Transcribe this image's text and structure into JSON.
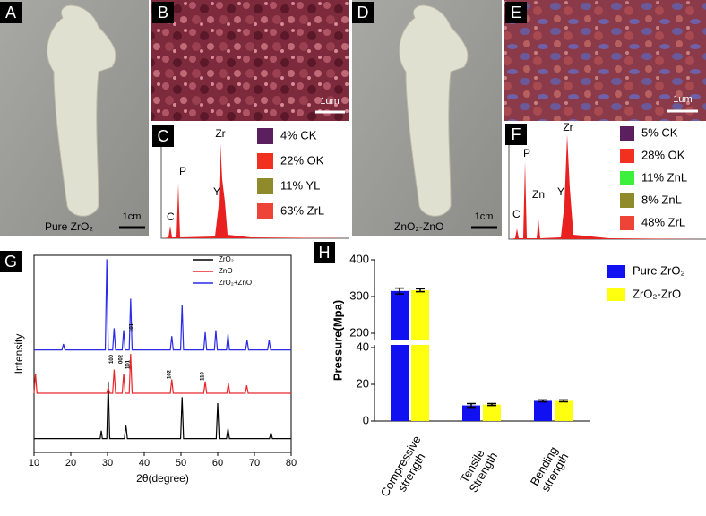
{
  "panels": {
    "A": {
      "letter": "A",
      "caption": "Pure ZrO₂",
      "scale": "1cm"
    },
    "B": {
      "letter": "B",
      "scale": "1um"
    },
    "C": {
      "letter": "C",
      "peaks": [
        "C",
        "P",
        "Zr",
        "Y"
      ],
      "legend": [
        {
          "text": "4% CK",
          "color": "#5b1f5e"
        },
        {
          "text": "22% OK",
          "color": "#f2301f"
        },
        {
          "text": "11% YL",
          "color": "#8f8a2a"
        },
        {
          "text": "63% ZrL",
          "color": "#ee4438"
        }
      ]
    },
    "D": {
      "letter": "D",
      "caption": "ZnO₂-ZnO",
      "scale": "1cm"
    },
    "E": {
      "letter": "E",
      "scale": "1um"
    },
    "F": {
      "letter": "F",
      "peaks": [
        "C",
        "P",
        "Zn",
        "Y",
        "Zr"
      ],
      "legend": [
        {
          "text": "5% CK",
          "color": "#5b1f5e"
        },
        {
          "text": "28% OK",
          "color": "#f2301f"
        },
        {
          "text": "11% ZnL",
          "color": "#3cf03c"
        },
        {
          "text": "8% ZnL",
          "color": "#8f8a2a"
        },
        {
          "text": "48% ZrL",
          "color": "#ee4438"
        }
      ]
    }
  },
  "chart_data": [
    {
      "letter": "G",
      "type": "line",
      "xlabel": "2θ(degree)",
      "ylabel": "Intensity",
      "xlim": [
        10,
        80
      ],
      "xticks": [
        10,
        20,
        30,
        40,
        50,
        60,
        70,
        80
      ],
      "ylim": [
        0,
        100
      ],
      "series": [
        {
          "name": "ZrO₂",
          "color": "#000000",
          "x": [
            10,
            28,
            28.3,
            28.6,
            29.8,
            30.2,
            30.6,
            34.6,
            35,
            35.4,
            49.9,
            50.3,
            50.7,
            59.6,
            60,
            60.4,
            62.4,
            62.8,
            63.2,
            74.1,
            74.5,
            74.9,
            80
          ],
          "values": [
            7,
            7,
            11,
            7,
            7,
            36,
            7,
            7,
            14,
            7,
            7,
            28,
            7,
            7,
            25,
            7,
            7,
            12,
            7,
            7,
            10,
            7,
            7
          ]
        },
        {
          "name": "ZnO",
          "color": "#e8262a",
          "x": [
            10,
            10.4,
            10.8,
            29.8,
            30.2,
            30.6,
            31.4,
            31.8,
            32.2,
            34,
            34.4,
            34.8,
            35.9,
            36.3,
            36.7,
            47.1,
            47.5,
            47.9,
            56.2,
            56.6,
            57,
            62.5,
            62.9,
            63.3,
            67.5,
            67.9,
            68.3,
            80
          ],
          "values": [
            30,
            40,
            30,
            30,
            33,
            30,
            30,
            42,
            30,
            30,
            40,
            30,
            30,
            50,
            30,
            30,
            37,
            30,
            30,
            36,
            30,
            30,
            35,
            30,
            30,
            34,
            30,
            30
          ]
        },
        {
          "name": "ZrO₂+ZnO",
          "color": "#2a2ae8",
          "x": [
            10,
            17.6,
            18,
            18.4,
            29.4,
            29.8,
            30.2,
            31.4,
            31.8,
            32.2,
            34,
            34.4,
            34.8,
            35.9,
            36.3,
            36.7,
            47.1,
            47.5,
            47.9,
            49.9,
            50.3,
            50.7,
            56.2,
            56.6,
            57,
            59.1,
            59.5,
            59.9,
            62.4,
            62.8,
            63.2,
            67.6,
            68,
            68.4,
            73.6,
            74,
            74.4,
            80
          ],
          "values": [
            52,
            52,
            55,
            52,
            52,
            98,
            52,
            52,
            63,
            52,
            52,
            62,
            52,
            52,
            78,
            52,
            52,
            59,
            52,
            52,
            75,
            52,
            52,
            61,
            52,
            52,
            62,
            52,
            52,
            60,
            52,
            52,
            57,
            52,
            52,
            57,
            52,
            52
          ]
        }
      ],
      "annotations": [
        {
          "text": "100",
          "x": 31.8
        },
        {
          "text": "002",
          "x": 34.4
        },
        {
          "text": "101",
          "x": 36.3
        },
        {
          "text": "102",
          "x": 47.5
        },
        {
          "text": "110",
          "x": 56.6
        },
        {
          "text": "101",
          "x": 37.3
        }
      ]
    },
    {
      "letter": "H",
      "type": "bar",
      "ylabel": "Pressure(Mpa)",
      "categories": [
        "Compressive strength",
        "Tensile Strength",
        "Bending strength"
      ],
      "ylim": [
        0,
        400
      ],
      "axis_break": [
        40,
        200
      ],
      "yticks": [
        0,
        20,
        40,
        200,
        300,
        400
      ],
      "series": [
        {
          "name": "Pure ZrO₂",
          "color": "#1010f0",
          "values": [
            315,
            8.5,
            11
          ],
          "errors": [
            8,
            1,
            0.5
          ]
        },
        {
          "name": "ZrO₂-ZrO",
          "color": "#ffff10",
          "values": [
            317,
            9,
            11
          ],
          "errors": [
            4,
            0.5,
            0.5
          ]
        }
      ]
    }
  ]
}
